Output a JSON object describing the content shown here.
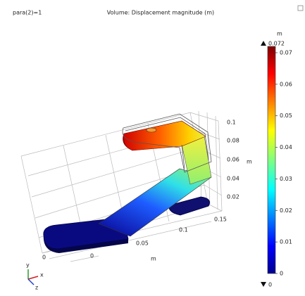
{
  "header": {
    "parameter": "para(2)=1",
    "title": "Volume: Displacement magnitude (m)"
  },
  "colorbar": {
    "unit": "m",
    "max": 0.072,
    "min": 0,
    "ticks": [
      0,
      0.01,
      0.02,
      0.03,
      0.04,
      0.05,
      0.06,
      0.07
    ]
  },
  "axes": {
    "z": {
      "ticks": [
        0.02,
        0.04,
        0.06,
        0.08,
        0.1
      ],
      "unit": "m"
    },
    "x": {
      "ticks": [
        0,
        0.05,
        0.1,
        0.15
      ],
      "unit": "m"
    },
    "y": {
      "ticks": [
        0
      ]
    }
  },
  "triad": {
    "y": "y",
    "x": "x",
    "z": "z"
  }
}
